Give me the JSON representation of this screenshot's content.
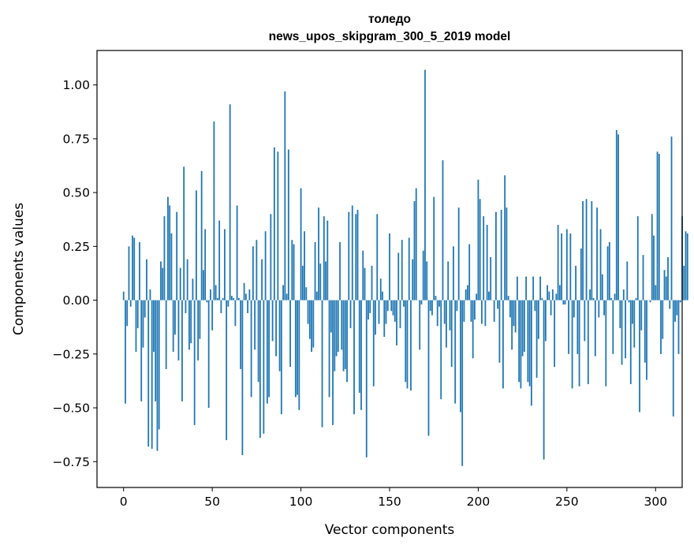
{
  "chart_data": {
    "type": "bar",
    "title": "толедо",
    "subtitle": "news_upos_skipgram_300_5_2019 model",
    "xlabel": "Vector components",
    "ylabel": "Components values",
    "xlim": [
      -15,
      315
    ],
    "ylim": [
      -0.87,
      1.16
    ],
    "xticks": [
      0,
      50,
      100,
      150,
      200,
      250,
      300
    ],
    "yticks": [
      -0.75,
      -0.5,
      -0.25,
      0.0,
      0.25,
      0.5,
      0.75,
      1.0
    ],
    "ytick_labels": [
      "−0.75",
      "−0.50",
      "−0.25",
      "0.00",
      "0.25",
      "0.50",
      "0.75",
      "1.00"
    ],
    "xtick_labels": [
      "0",
      "50",
      "100",
      "150",
      "200",
      "250",
      "300"
    ],
    "bar_color": "#1f77b4",
    "grid": false,
    "values": [
      0.04,
      -0.48,
      -0.12,
      0.25,
      -0.03,
      0.3,
      0.29,
      -0.24,
      -0.13,
      0.27,
      -0.47,
      -0.22,
      -0.08,
      0.19,
      -0.68,
      0.05,
      -0.69,
      -0.24,
      -0.47,
      -0.7,
      -0.6,
      0.18,
      0.15,
      0.39,
      -0.32,
      0.48,
      0.44,
      0.31,
      -0.24,
      -0.16,
      0.41,
      -0.28,
      0.15,
      -0.47,
      0.62,
      -0.06,
      0.19,
      -0.23,
      -0.2,
      0.1,
      -0.58,
      0.51,
      -0.28,
      -0.18,
      0.6,
      0.14,
      0.33,
      -0.01,
      -0.5,
      0.05,
      -0.14,
      0.83,
      0.07,
      0.01,
      0.37,
      -0.06,
      0.01,
      0.33,
      -0.65,
      -0.03,
      0.91,
      0.02,
      0.01,
      -0.12,
      0.44,
      0.01,
      -0.32,
      -0.72,
      0.08,
      0.03,
      -0.06,
      0.05,
      -0.45,
      0.25,
      -0.23,
      0.28,
      -0.38,
      -0.64,
      0.19,
      -0.62,
      0.32,
      -0.48,
      -0.45,
      0.4,
      -0.19,
      0.71,
      -0.26,
      0.69,
      -0.33,
      -0.53,
      0.07,
      0.97,
      0.03,
      0.7,
      -0.31,
      0.28,
      0.26,
      -0.45,
      -0.44,
      -0.51,
      0.52,
      0.16,
      0.32,
      0.06,
      -0.11,
      -0.18,
      -0.24,
      -0.22,
      0.27,
      0.04,
      0.43,
      0.17,
      -0.59,
      0.39,
      0.18,
      0.37,
      -0.45,
      -0.15,
      -0.58,
      -0.33,
      -0.26,
      -0.24,
      0.27,
      -0.23,
      -0.33,
      -0.32,
      -0.38,
      0.41,
      -0.13,
      0.44,
      -0.53,
      0.4,
      0.42,
      -0.43,
      -0.51,
      0.23,
      0.15,
      -0.73,
      -0.09,
      -0.06,
      0.16,
      -0.4,
      -0.16,
      0.4,
      -0.11,
      0.1,
      0.04,
      -0.17,
      -0.11,
      -0.05,
      0.31,
      -0.05,
      -0.07,
      -0.1,
      -0.21,
      0.22,
      -0.13,
      0.28,
      -0.03,
      -0.38,
      -0.41,
      0.29,
      -0.42,
      0.19,
      0.46,
      0.52,
      0.0,
      -0.23,
      -0.02,
      0.23,
      1.07,
      0.18,
      -0.63,
      -0.05,
      -0.07,
      0.48,
      0.02,
      -0.12,
      -0.03,
      -0.46,
      0.65,
      -0.11,
      -0.22,
      0.18,
      -0.14,
      -0.31,
      0.25,
      -0.48,
      -0.05,
      0.43,
      -0.52,
      -0.77,
      -0.1,
      0.05,
      0.07,
      0.26,
      -0.1,
      -0.27,
      -0.09,
      0.03,
      0.56,
      0.47,
      -0.11,
      0.39,
      -0.12,
      0.35,
      0.04,
      0.2,
      0.0,
      -0.1,
      0.41,
      -0.04,
      -0.29,
      0.42,
      -0.41,
      0.58,
      0.43,
      0.02,
      -0.08,
      -0.23,
      -0.12,
      -0.15,
      0.11,
      -0.38,
      -0.41,
      -0.26,
      -0.24,
      0.11,
      -0.38,
      -0.4,
      -0.49,
      0.11,
      -0.05,
      -0.36,
      -0.18,
      0.11,
      0.01,
      -0.74,
      -0.19,
      0.07,
      0.04,
      -0.07,
      0.05,
      -0.31,
      0.03,
      0.35,
      0.07,
      0.31,
      -0.02,
      -0.02,
      0.33,
      -0.25,
      0.31,
      -0.41,
      -0.08,
      0.16,
      -0.25,
      -0.4,
      0.24,
      0.46,
      -0.19,
      0.47,
      -0.39,
      0.05,
      0.46,
      0.01,
      -0.26,
      0.43,
      -0.08,
      0.33,
      0.12,
      -0.07,
      -0.4,
      0.25,
      0.27,
      0.01,
      -0.25,
      0.03,
      0.79,
      0.77,
      -0.13,
      -0.3,
      0.05,
      -0.27,
      0.18,
      -0.01,
      -0.39,
      -0.11,
      -0.22,
      0.01,
      0.39,
      -0.52,
      -0.14,
      0.21,
      -0.29,
      -0.37,
      0.0,
      -0.01,
      0.4,
      0.3,
      0.07,
      0.69,
      0.68,
      -0.25,
      -0.18,
      0.14,
      0.11,
      0.2,
      -0.04,
      0.76,
      -0.54,
      -0.1,
      -0.07,
      -0.25,
      -0.01,
      0.39,
      0.16,
      0.32,
      0.31
    ]
  }
}
